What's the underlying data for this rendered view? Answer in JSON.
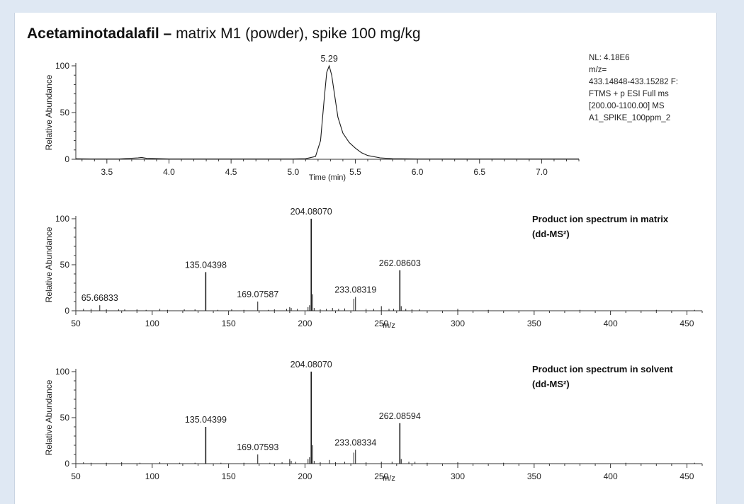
{
  "title": {
    "bold": "Acetaminotadalafil –",
    "rest": " matrix M1 (powder), spike 100 mg/kg"
  },
  "chart_data": [
    {
      "type": "line",
      "ylabel": "Relative Abundance",
      "xlabel": "Time (min)",
      "xlim": [
        3.25,
        7.3
      ],
      "ylim": [
        0,
        100
      ],
      "xticks": [
        "3.5",
        "4.0",
        "4.5",
        "5.0",
        "5.5",
        "6.0",
        "6.5",
        "7.0"
      ],
      "yticks": [
        "0",
        "50",
        "100"
      ],
      "peak_labels": [
        {
          "x": 5.29,
          "y": 100,
          "text": "5.29"
        }
      ],
      "info_lines": [
        "NL: 4.18E6",
        "m/z=",
        "433.14848-433.15282 F:",
        "FTMS + p ESI Full ms",
        "[200.00-1100.00]  MS",
        "A1_SPIKE_100ppm_2"
      ],
      "series": [
        {
          "x": [
            3.25,
            3.4,
            3.6,
            3.75,
            3.78,
            3.82,
            4.0,
            4.5,
            5.0,
            5.1,
            5.18,
            5.22,
            5.25,
            5.27,
            5.29,
            5.31,
            5.33,
            5.36,
            5.4,
            5.45,
            5.5,
            5.55,
            5.6,
            5.7,
            5.8,
            6.0,
            6.5,
            7.0,
            7.3
          ],
          "y": [
            0.5,
            0.3,
            0.4,
            1.5,
            2,
            1,
            0.3,
            0.3,
            0.3,
            0.6,
            3,
            20,
            65,
            93,
            100,
            90,
            72,
            45,
            28,
            18,
            12,
            7,
            4,
            1.5,
            0.6,
            0.3,
            0.3,
            0.3,
            0.3
          ]
        }
      ]
    },
    {
      "type": "bar",
      "ylabel": "Relative Abundance",
      "xlabel": "m/z",
      "xlim": [
        50,
        460
      ],
      "ylim": [
        0,
        100
      ],
      "xticks": [
        "50",
        "100",
        "150",
        "200",
        "250",
        "300",
        "350",
        "400",
        "450"
      ],
      "yticks": [
        "0",
        "50",
        "100"
      ],
      "annotation": [
        "Product ion spectrum in matrix",
        "(dd-MS²)"
      ],
      "peak_labels": [
        {
          "x": 65.66833,
          "y": 6,
          "text": "65.66833"
        },
        {
          "x": 135.04398,
          "y": 42,
          "text": "135.04398"
        },
        {
          "x": 169.07587,
          "y": 10,
          "text": "169.07587"
        },
        {
          "x": 204.0807,
          "y": 100,
          "text": "204.08070"
        },
        {
          "x": 233.08319,
          "y": 15,
          "text": "233.08319"
        },
        {
          "x": 262.08603,
          "y": 44,
          "text": "262.08603"
        }
      ],
      "peaks": [
        [
          55,
          2
        ],
        [
          60,
          2
        ],
        [
          65.67,
          6
        ],
        [
          70,
          1.5
        ],
        [
          78,
          1.5
        ],
        [
          82,
          1.5
        ],
        [
          90,
          1.5
        ],
        [
          96,
          1
        ],
        [
          105,
          2
        ],
        [
          110,
          1
        ],
        [
          121,
          1.5
        ],
        [
          128,
          1.5
        ],
        [
          135.04,
          42
        ],
        [
          143,
          1
        ],
        [
          152,
          1.5
        ],
        [
          160,
          1
        ],
        [
          169.08,
          10
        ],
        [
          176,
          1
        ],
        [
          180,
          1.5
        ],
        [
          188,
          2
        ],
        [
          190,
          4
        ],
        [
          191,
          3
        ],
        [
          195,
          2
        ],
        [
          202,
          4
        ],
        [
          203,
          6
        ],
        [
          204.08,
          100
        ],
        [
          205,
          18
        ],
        [
          206,
          3
        ],
        [
          210,
          1.5
        ],
        [
          214,
          2
        ],
        [
          218,
          3
        ],
        [
          222,
          2
        ],
        [
          226,
          2.5
        ],
        [
          232,
          13
        ],
        [
          233.08,
          15
        ],
        [
          240,
          2
        ],
        [
          245,
          2
        ],
        [
          250,
          5
        ],
        [
          255,
          2
        ],
        [
          258,
          2
        ],
        [
          262.09,
          44
        ],
        [
          263,
          5
        ],
        [
          266,
          2
        ],
        [
          270,
          1.5
        ],
        [
          275,
          1.5
        ],
        [
          300,
          2
        ],
        [
          320,
          1
        ],
        [
          380,
          1
        ],
        [
          430,
          1
        ],
        [
          455,
          1
        ]
      ]
    },
    {
      "type": "bar",
      "ylabel": "Relative Abundance",
      "xlabel": "m/z",
      "xlim": [
        50,
        460
      ],
      "ylim": [
        0,
        100
      ],
      "xticks": [
        "50",
        "100",
        "150",
        "200",
        "250",
        "300",
        "350",
        "400",
        "450"
      ],
      "yticks": [
        "0",
        "50",
        "100"
      ],
      "annotation": [
        "Product ion spectrum in solvent",
        "(dd-MS²)"
      ],
      "peak_labels": [
        {
          "x": 135.04399,
          "y": 40,
          "text": "135.04399"
        },
        {
          "x": 169.07593,
          "y": 10,
          "text": "169.07593"
        },
        {
          "x": 204.0807,
          "y": 100,
          "text": "204.08070"
        },
        {
          "x": 233.08334,
          "y": 15,
          "text": "233.08334"
        },
        {
          "x": 262.08594,
          "y": 44,
          "text": "262.08594"
        }
      ],
      "peaks": [
        [
          55,
          1.5
        ],
        [
          60,
          1
        ],
        [
          70,
          1
        ],
        [
          80,
          1.5
        ],
        [
          92,
          1
        ],
        [
          105,
          1.5
        ],
        [
          118,
          1
        ],
        [
          128,
          1
        ],
        [
          135.04,
          40
        ],
        [
          145,
          1
        ],
        [
          160,
          1
        ],
        [
          169.08,
          10
        ],
        [
          177,
          1
        ],
        [
          185,
          1.5
        ],
        [
          190,
          5
        ],
        [
          191,
          3
        ],
        [
          194,
          2
        ],
        [
          202,
          5
        ],
        [
          203,
          7
        ],
        [
          204.08,
          100
        ],
        [
          205,
          20
        ],
        [
          206,
          3
        ],
        [
          210,
          1.5
        ],
        [
          216,
          4
        ],
        [
          220,
          1.5
        ],
        [
          226,
          2
        ],
        [
          232,
          12
        ],
        [
          233.08,
          15
        ],
        [
          240,
          1.5
        ],
        [
          250,
          2
        ],
        [
          257,
          2
        ],
        [
          262.09,
          44
        ],
        [
          263,
          5
        ],
        [
          268,
          2
        ],
        [
          272,
          2
        ],
        [
          280,
          1
        ],
        [
          300,
          1.5
        ],
        [
          330,
          1
        ],
        [
          410,
          1
        ],
        [
          455,
          1
        ]
      ]
    }
  ],
  "colors": {
    "background": "#dfe8f3",
    "panel": "#ffffff",
    "trace": "#1a1a1a"
  }
}
